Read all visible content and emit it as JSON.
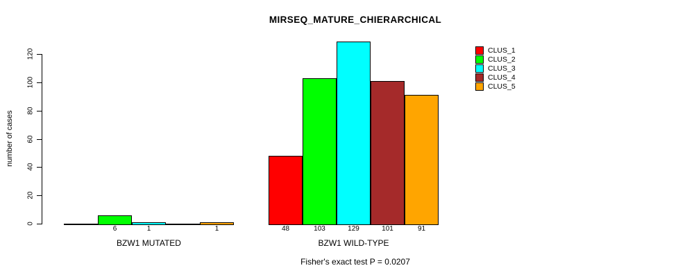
{
  "title": "MIRSEQ_MATURE_CHIERARCHICAL",
  "y_axis": {
    "label": "number of cases",
    "ticks": [
      0,
      20,
      40,
      60,
      80,
      100,
      120
    ]
  },
  "legend": {
    "items": [
      {
        "label": "CLUS_1",
        "color": "#FF0000"
      },
      {
        "label": "CLUS_2",
        "color": "#00FF00"
      },
      {
        "label": "CLUS_3",
        "color": "#00FFFF"
      },
      {
        "label": "CLUS_4",
        "color": "#A52A2A"
      },
      {
        "label": "CLUS_5",
        "color": "#FFA500"
      }
    ]
  },
  "footer": {
    "text": "Fisher's exact test P = 0.0207"
  },
  "chart_data": {
    "type": "bar",
    "title": "MIRSEQ_MATURE_CHIERARCHICAL",
    "ylabel": "number of cases",
    "ylim": [
      0,
      130
    ],
    "yticks": [
      0,
      20,
      40,
      60,
      80,
      100,
      120
    ],
    "grid": false,
    "legend_position": "top-right",
    "series_names": [
      "CLUS_1",
      "CLUS_2",
      "CLUS_3",
      "CLUS_4",
      "CLUS_5"
    ],
    "colors": [
      "#FF0000",
      "#00FF00",
      "#00FFFF",
      "#A52A2A",
      "#FFA500"
    ],
    "groups": [
      {
        "label": "BZW1 MUTATED",
        "values": [
          0,
          6,
          1,
          0,
          1
        ],
        "bar_labels": [
          "",
          "6",
          "1",
          "",
          "1"
        ]
      },
      {
        "label": "BZW1 WILD-TYPE",
        "values": [
          48,
          103,
          129,
          101,
          91
        ],
        "bar_labels": [
          "48",
          "103",
          "129",
          "101",
          "91"
        ]
      }
    ],
    "annotation": "Fisher's exact test P = 0.0207"
  }
}
